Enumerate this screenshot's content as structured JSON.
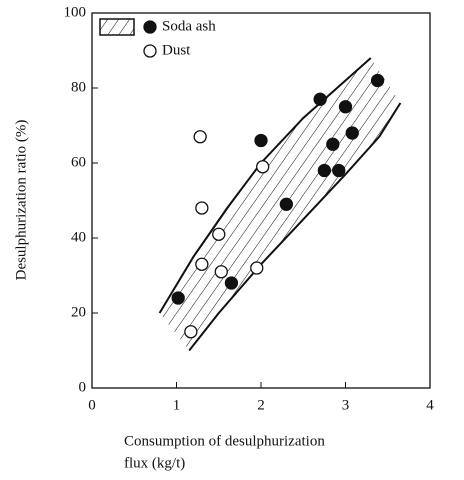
{
  "chart_data": {
    "type": "scatter",
    "y_label": "Desulphurization ratio (%)",
    "x_label_lines": [
      "Consumption of desulphurization",
      "flux (kg/t)"
    ],
    "xlim": [
      0,
      4
    ],
    "xticks": [
      0,
      1,
      2,
      3,
      4
    ],
    "ylim": [
      0,
      100
    ],
    "yticks": [
      0,
      20,
      40,
      60,
      80,
      100
    ],
    "legend": "top-left",
    "series": [
      {
        "name": "Soda ash",
        "marker": "filled",
        "color": "#111",
        "x": [
          1.02,
          1.65,
          2.0,
          2.3,
          2.7,
          2.75,
          2.85,
          2.92,
          3.0,
          3.08,
          3.38
        ],
        "values": [
          24,
          28,
          66,
          49,
          77,
          58,
          65,
          58,
          75,
          68,
          82
        ]
      },
      {
        "name": "Dust",
        "marker": "open",
        "color": "#111",
        "x": [
          1.28,
          1.3,
          1.3,
          1.5,
          1.53,
          1.95,
          2.02,
          1.17
        ],
        "values": [
          67,
          48,
          33,
          41,
          31,
          32,
          59,
          15
        ]
      }
    ],
    "band": {
      "upper": {
        "x": [
          0.8,
          1.2,
          1.6,
          2.0,
          2.5,
          3.0,
          3.3
        ],
        "values": [
          20,
          35,
          48,
          60,
          72,
          82,
          88
        ]
      },
      "lower": {
        "x": [
          1.15,
          1.5,
          2.0,
          2.5,
          3.0,
          3.4,
          3.65
        ],
        "values": [
          10,
          20,
          33,
          45,
          57,
          67,
          76
        ]
      }
    }
  }
}
